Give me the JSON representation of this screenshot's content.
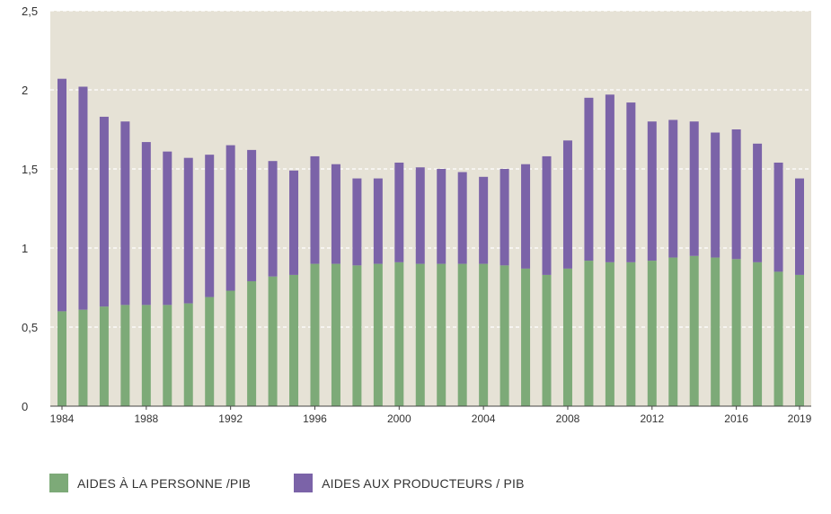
{
  "chart_data": {
    "type": "bar",
    "stacked": true,
    "title": "",
    "xlabel": "",
    "ylabel": "",
    "ylim": [
      0,
      2.5
    ],
    "y_ticks": [
      "0",
      "0,5",
      "1",
      "1,5",
      "2",
      "2,5"
    ],
    "x_tick_labels": [
      "1984",
      "1988",
      "1992",
      "1996",
      "2000",
      "2004",
      "2008",
      "2012",
      "2016",
      "2019"
    ],
    "grid": "horizontal dashed",
    "legend_position": "bottom-left",
    "background_color": "#e6e2d6",
    "categories": [
      "1984",
      "1985",
      "1986",
      "1987",
      "1988",
      "1989",
      "1990",
      "1991",
      "1992",
      "1993",
      "1994",
      "1995",
      "1996",
      "1997",
      "1998",
      "1999",
      "2000",
      "2001",
      "2002",
      "2003",
      "2004",
      "2005",
      "2006",
      "2007",
      "2008",
      "2009",
      "2010",
      "2011",
      "2012",
      "2013",
      "2014",
      "2015",
      "2016",
      "2017",
      "2018",
      "2019"
    ],
    "series": [
      {
        "name": "AIDES À LA PERSONNE /PIB",
        "color": "#7daa78",
        "values": [
          0.6,
          0.61,
          0.63,
          0.64,
          0.64,
          0.64,
          0.65,
          0.69,
          0.73,
          0.79,
          0.82,
          0.83,
          0.9,
          0.9,
          0.89,
          0.9,
          0.91,
          0.9,
          0.9,
          0.9,
          0.9,
          0.89,
          0.87,
          0.83,
          0.87,
          0.92,
          0.91,
          0.91,
          0.92,
          0.94,
          0.95,
          0.94,
          0.93,
          0.91,
          0.85,
          0.83
        ]
      },
      {
        "name": "AIDES AUX PRODUCTEURS / PIB",
        "color": "#7b63a8",
        "values": [
          1.47,
          1.41,
          1.2,
          1.16,
          1.03,
          0.97,
          0.92,
          0.9,
          0.92,
          0.83,
          0.73,
          0.66,
          0.68,
          0.63,
          0.55,
          0.54,
          0.63,
          0.61,
          0.6,
          0.58,
          0.55,
          0.61,
          0.66,
          0.75,
          0.81,
          1.03,
          1.06,
          1.01,
          0.88,
          0.87,
          0.85,
          0.79,
          0.82,
          0.75,
          0.69,
          0.61
        ]
      }
    ]
  },
  "legend": {
    "items": [
      {
        "label": "AIDES À LA PERSONNE /PIB",
        "color": "#7daa78"
      },
      {
        "label": "AIDES AUX PRODUCTEURS / PIB",
        "color": "#7b63a8"
      }
    ]
  }
}
